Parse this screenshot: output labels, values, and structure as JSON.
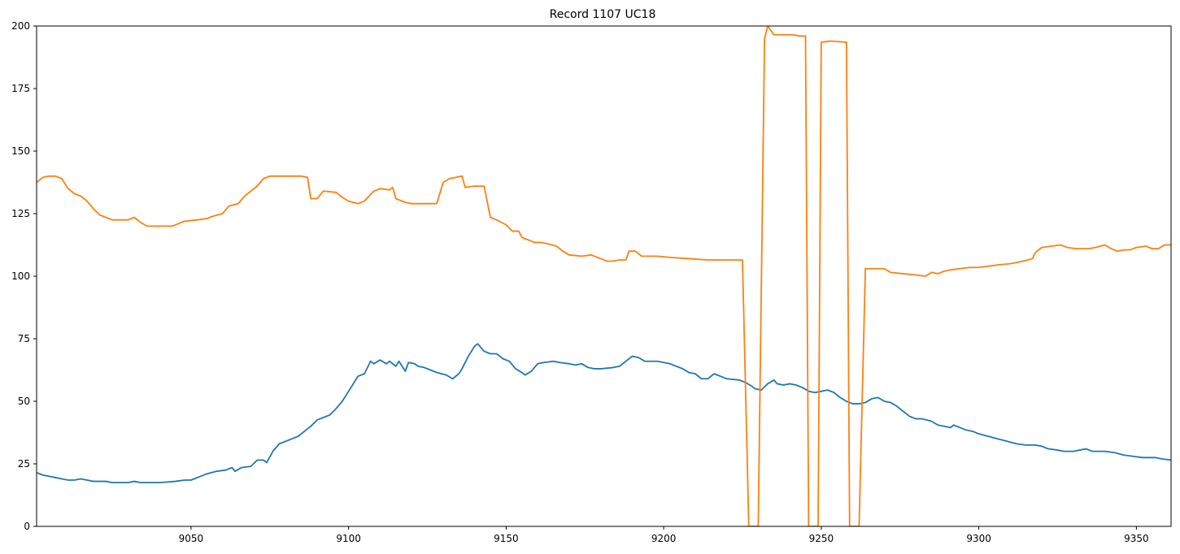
{
  "chart_data": {
    "type": "line",
    "title": "Record 1107 UC18",
    "xlabel": "",
    "ylabel": "",
    "xlim": [
      9001,
      9361
    ],
    "ylim": [
      0,
      200
    ],
    "xticks": [
      9050,
      9100,
      9150,
      9200,
      9250,
      9300,
      9350
    ],
    "yticks": [
      0,
      25,
      50,
      75,
      100,
      125,
      150,
      175,
      200
    ],
    "grid": false,
    "legend": "none",
    "series": [
      {
        "color": "#1f77b4",
        "points": [
          [
            9001,
            21.5
          ],
          [
            9003,
            20.5
          ],
          [
            9005,
            20
          ],
          [
            9007,
            19.5
          ],
          [
            9009,
            19
          ],
          [
            9011,
            18.5
          ],
          [
            9013,
            18.5
          ],
          [
            9015,
            19
          ],
          [
            9017,
            18.5
          ],
          [
            9019,
            18
          ],
          [
            9021,
            18
          ],
          [
            9023,
            18
          ],
          [
            9025,
            17.5
          ],
          [
            9030,
            17.5
          ],
          [
            9032,
            18
          ],
          [
            9034,
            17.5
          ],
          [
            9040,
            17.5
          ],
          [
            9045,
            18
          ],
          [
            9048,
            18.5
          ],
          [
            9050,
            18.5
          ],
          [
            9053,
            20
          ],
          [
            9055,
            21
          ],
          [
            9058,
            22
          ],
          [
            9061,
            22.5
          ],
          [
            9063,
            23.5
          ],
          [
            9064,
            22
          ],
          [
            9066,
            23.5
          ],
          [
            9069,
            24
          ],
          [
            9071,
            26.5
          ],
          [
            9073,
            26.5
          ],
          [
            9074,
            25.5
          ],
          [
            9076,
            30
          ],
          [
            9078,
            33
          ],
          [
            9080,
            34
          ],
          [
            9082,
            35
          ],
          [
            9084,
            36
          ],
          [
            9086,
            38
          ],
          [
            9088,
            40
          ],
          [
            9090,
            42.5
          ],
          [
            9092,
            43.5
          ],
          [
            9094,
            44.5
          ],
          [
            9096,
            47
          ],
          [
            9098,
            50
          ],
          [
            9100,
            54
          ],
          [
            9102,
            58
          ],
          [
            9103,
            60
          ],
          [
            9105,
            61
          ],
          [
            9107,
            66
          ],
          [
            9108,
            65
          ],
          [
            9110,
            66.5
          ],
          [
            9112,
            65
          ],
          [
            9113,
            66
          ],
          [
            9115,
            64
          ],
          [
            9116,
            66
          ],
          [
            9118,
            62
          ],
          [
            9119,
            65.5
          ],
          [
            9121,
            65
          ],
          [
            9122,
            64
          ],
          [
            9124,
            63.5
          ],
          [
            9126,
            62.5
          ],
          [
            9128,
            61.5
          ],
          [
            9131,
            60.5
          ],
          [
            9133,
            59
          ],
          [
            9135,
            61
          ],
          [
            9136,
            63
          ],
          [
            9138,
            68
          ],
          [
            9140,
            72
          ],
          [
            9141,
            73
          ],
          [
            9143,
            70
          ],
          [
            9145,
            69
          ],
          [
            9147,
            69
          ],
          [
            9149,
            67
          ],
          [
            9151,
            66
          ],
          [
            9153,
            63
          ],
          [
            9155,
            61.5
          ],
          [
            9156,
            60.5
          ],
          [
            9158,
            62
          ],
          [
            9160,
            65
          ],
          [
            9162,
            65.5
          ],
          [
            9165,
            66
          ],
          [
            9167,
            65.5
          ],
          [
            9170,
            65
          ],
          [
            9172,
            64.5
          ],
          [
            9174,
            65
          ],
          [
            9176,
            63.5
          ],
          [
            9178,
            63
          ],
          [
            9180,
            63
          ],
          [
            9184,
            63.5
          ],
          [
            9186,
            64
          ],
          [
            9188,
            66
          ],
          [
            9190,
            68
          ],
          [
            9192,
            67.5
          ],
          [
            9194,
            66
          ],
          [
            9198,
            66
          ],
          [
            9202,
            65
          ],
          [
            9204,
            64
          ],
          [
            9206,
            63
          ],
          [
            9208,
            61.5
          ],
          [
            9210,
            61
          ],
          [
            9212,
            59
          ],
          [
            9214,
            59
          ],
          [
            9216,
            61
          ],
          [
            9218,
            60
          ],
          [
            9220,
            59
          ],
          [
            9224,
            58.5
          ],
          [
            9226,
            57.5
          ],
          [
            9228,
            56
          ],
          [
            9229,
            55
          ],
          [
            9231,
            54.5
          ],
          [
            9233,
            57
          ],
          [
            9235,
            58.5
          ],
          [
            9236,
            57
          ],
          [
            9238,
            56.5
          ],
          [
            9240,
            57
          ],
          [
            9242,
            56.5
          ],
          [
            9244,
            55.5
          ],
          [
            9246,
            54
          ],
          [
            9248,
            53.5
          ],
          [
            9250,
            54
          ],
          [
            9252,
            54.5
          ],
          [
            9254,
            53.5
          ],
          [
            9256,
            51.5
          ],
          [
            9258,
            50
          ],
          [
            9260,
            49
          ],
          [
            9262,
            49
          ],
          [
            9264,
            49.5
          ],
          [
            9266,
            51
          ],
          [
            9268,
            51.5
          ],
          [
            9270,
            50
          ],
          [
            9272,
            49.5
          ],
          [
            9274,
            48
          ],
          [
            9276,
            46
          ],
          [
            9278,
            44
          ],
          [
            9280,
            43
          ],
          [
            9282,
            43
          ],
          [
            9285,
            42
          ],
          [
            9287,
            40.5
          ],
          [
            9289,
            40
          ],
          [
            9291,
            39.5
          ],
          [
            9292,
            40.5
          ],
          [
            9294,
            39.5
          ],
          [
            9296,
            38.5
          ],
          [
            9298,
            38
          ],
          [
            9300,
            37
          ],
          [
            9303,
            36
          ],
          [
            9306,
            35
          ],
          [
            9309,
            34
          ],
          [
            9312,
            33
          ],
          [
            9315,
            32.5
          ],
          [
            9318,
            32.5
          ],
          [
            9320,
            32
          ],
          [
            9322,
            31
          ],
          [
            9325,
            30.5
          ],
          [
            9327,
            30
          ],
          [
            9330,
            30
          ],
          [
            9332,
            30.5
          ],
          [
            9334,
            31
          ],
          [
            9336,
            30
          ],
          [
            9340,
            30
          ],
          [
            9343,
            29.5
          ],
          [
            9346,
            28.5
          ],
          [
            9349,
            28
          ],
          [
            9352,
            27.5
          ],
          [
            9356,
            27.5
          ],
          [
            9358,
            27
          ],
          [
            9361,
            26.5
          ]
        ]
      },
      {
        "color": "#ff7f0e",
        "points": [
          [
            9001,
            137.5
          ],
          [
            9003,
            139.5
          ],
          [
            9005,
            140
          ],
          [
            9007,
            140
          ],
          [
            9009,
            139
          ],
          [
            9011,
            135
          ],
          [
            9013,
            133
          ],
          [
            9015,
            132
          ],
          [
            9017,
            130
          ],
          [
            9019,
            127
          ],
          [
            9021,
            124.5
          ],
          [
            9023,
            123.5
          ],
          [
            9025,
            122.5
          ],
          [
            9030,
            122.5
          ],
          [
            9032,
            123.5
          ],
          [
            9034,
            121.5
          ],
          [
            9036,
            120
          ],
          [
            9040,
            120
          ],
          [
            9044,
            120
          ],
          [
            9046,
            121
          ],
          [
            9048,
            122
          ],
          [
            9052,
            122.5
          ],
          [
            9055,
            123
          ],
          [
            9057,
            124
          ],
          [
            9060,
            125
          ],
          [
            9062,
            128
          ],
          [
            9065,
            129
          ],
          [
            9067,
            132
          ],
          [
            9069,
            134
          ],
          [
            9071,
            136
          ],
          [
            9073,
            139
          ],
          [
            9075,
            140
          ],
          [
            9085,
            140
          ],
          [
            9087,
            139.5
          ],
          [
            9088,
            131
          ],
          [
            9090,
            131
          ],
          [
            9092,
            134
          ],
          [
            9096,
            133.5
          ],
          [
            9098,
            131.5
          ],
          [
            9100,
            130
          ],
          [
            9103,
            129
          ],
          [
            9105,
            130
          ],
          [
            9108,
            134
          ],
          [
            9110,
            135
          ],
          [
            9113,
            134.5
          ],
          [
            9114,
            135.5
          ],
          [
            9115,
            131
          ],
          [
            9118,
            129.5
          ],
          [
            9120,
            129
          ],
          [
            9128,
            129
          ],
          [
            9130,
            137.5
          ],
          [
            9132,
            139
          ],
          [
            9134,
            139.5
          ],
          [
            9136,
            140
          ],
          [
            9137,
            135.5
          ],
          [
            9140,
            136
          ],
          [
            9143,
            136
          ],
          [
            9145,
            123.5
          ],
          [
            9147,
            122.5
          ],
          [
            9150,
            120.5
          ],
          [
            9152,
            118
          ],
          [
            9154,
            118
          ],
          [
            9155,
            115.5
          ],
          [
            9157,
            114.5
          ],
          [
            9159,
            113.5
          ],
          [
            9161,
            113.5
          ],
          [
            9163,
            113
          ],
          [
            9166,
            112
          ],
          [
            9168,
            110
          ],
          [
            9170,
            108.5
          ],
          [
            9174,
            108
          ],
          [
            9177,
            108.5
          ],
          [
            9180,
            107
          ],
          [
            9182,
            106
          ],
          [
            9184,
            106
          ],
          [
            9186,
            106.5
          ],
          [
            9188,
            106.5
          ],
          [
            9189,
            110
          ],
          [
            9191,
            110
          ],
          [
            9193,
            108
          ],
          [
            9198,
            108
          ],
          [
            9202,
            107.5
          ],
          [
            9208,
            107
          ],
          [
            9214,
            106.5
          ],
          [
            9223,
            106.5
          ],
          [
            9225,
            106.5
          ],
          [
            9227,
            0
          ],
          [
            9228,
            0
          ],
          [
            9230,
            0
          ],
          [
            9232,
            195
          ],
          [
            9233,
            200
          ],
          [
            9235,
            196.5
          ],
          [
            9241,
            196.5
          ],
          [
            9243,
            196
          ],
          [
            9245,
            196
          ],
          [
            9246,
            0
          ],
          [
            9248,
            0
          ],
          [
            9249,
            0
          ],
          [
            9250,
            193.5
          ],
          [
            9253,
            194
          ],
          [
            9258,
            193.5
          ],
          [
            9259,
            0
          ],
          [
            9262,
            0
          ],
          [
            9264,
            103
          ],
          [
            9266,
            103
          ],
          [
            9270,
            103
          ],
          [
            9272,
            101.5
          ],
          [
            9276,
            101
          ],
          [
            9280,
            100.5
          ],
          [
            9283,
            100
          ],
          [
            9285,
            101.5
          ],
          [
            9287,
            101
          ],
          [
            9289,
            102
          ],
          [
            9291,
            102.5
          ],
          [
            9294,
            103
          ],
          [
            9297,
            103.5
          ],
          [
            9300,
            103.5
          ],
          [
            9303,
            104
          ],
          [
            9306,
            104.5
          ],
          [
            9310,
            105
          ],
          [
            9314,
            106
          ],
          [
            9317,
            107
          ],
          [
            9318,
            109.5
          ],
          [
            9320,
            111.5
          ],
          [
            9323,
            112
          ],
          [
            9326,
            112.5
          ],
          [
            9328,
            111.5
          ],
          [
            9331,
            111
          ],
          [
            9335,
            111
          ],
          [
            9337,
            111.5
          ],
          [
            9340,
            112.5
          ],
          [
            9342,
            111
          ],
          [
            9344,
            110
          ],
          [
            9346,
            110.5
          ],
          [
            9348,
            110.5
          ],
          [
            9350,
            111.5
          ],
          [
            9353,
            112
          ],
          [
            9355,
            111
          ],
          [
            9357,
            111
          ],
          [
            9359,
            112.5
          ],
          [
            9361,
            112.5
          ]
        ]
      }
    ]
  }
}
